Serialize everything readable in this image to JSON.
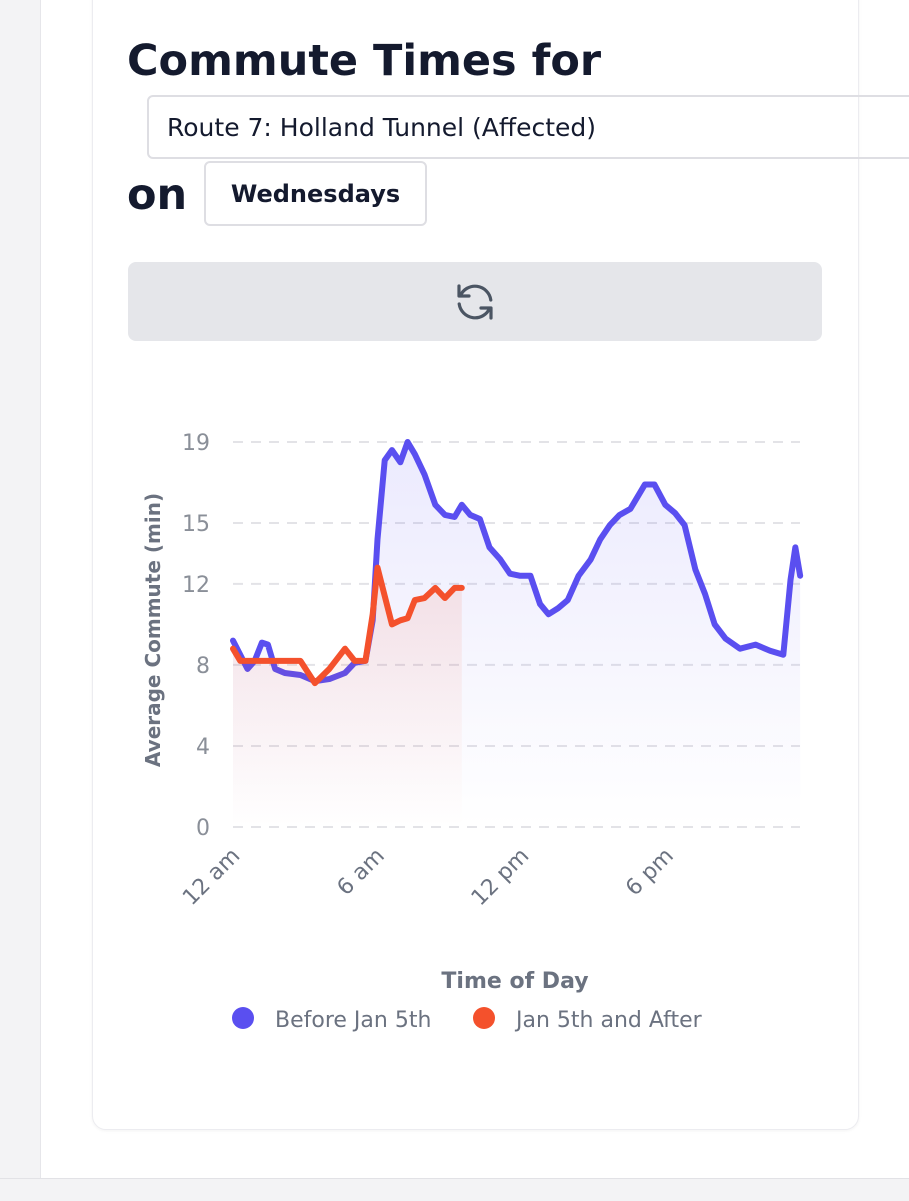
{
  "header": {
    "title": "Commute Times for",
    "route": "Route 7: Holland Tunnel (Affected)",
    "on": "on",
    "day": "Wednesdays"
  },
  "chart_data": {
    "type": "line",
    "xlabel": "Time of Day",
    "ylabel": "Average Commute (min)",
    "x": [
      0,
      0.3,
      0.6,
      0.9,
      1.2,
      1.45,
      1.75,
      2.15,
      2.8,
      3.4,
      4.0,
      4.65,
      5.05,
      5.5,
      5.8,
      6.0,
      6.3,
      6.6,
      6.95,
      7.25,
      7.55,
      7.95,
      8.4,
      8.8,
      9.2,
      9.5,
      9.85,
      10.25,
      10.65,
      11.1,
      11.5,
      11.9,
      12.35,
      12.75,
      13.1,
      13.5,
      13.9,
      14.35,
      14.85,
      15.25,
      15.65,
      16.05,
      16.5,
      17.1,
      17.5,
      17.95,
      18.35,
      18.75,
      19.2,
      19.6,
      20.0,
      20.45,
      21.05,
      21.7,
      22.3,
      22.85,
      23.15,
      23.35,
      23.55
    ],
    "series": [
      {
        "name": "Before Jan 5th",
        "color": "#5a4ff0",
        "values": [
          9.2,
          8.5,
          7.8,
          8.2,
          9.1,
          9.0,
          7.8,
          7.6,
          7.5,
          7.2,
          7.3,
          7.6,
          8.1,
          8.2,
          10.2,
          14.2,
          18.1,
          18.6,
          18.0,
          19.0,
          18.4,
          17.4,
          15.9,
          15.4,
          15.3,
          15.9,
          15.4,
          15.2,
          13.8,
          13.2,
          12.5,
          12.4,
          12.4,
          11.0,
          10.5,
          10.8,
          11.2,
          12.4,
          13.2,
          14.2,
          14.9,
          15.4,
          15.7,
          16.9,
          16.9,
          15.9,
          15.5,
          14.9,
          12.7,
          11.5,
          10.0,
          9.3,
          8.8,
          9.0,
          8.7,
          8.5,
          12.2,
          13.8,
          12.4
        ]
      },
      {
        "name": "Jan 5th and After",
        "color": "#f4512c",
        "values": [
          8.8,
          8.2,
          8.2,
          8.2,
          8.2,
          8.2,
          8.2,
          8.2,
          8.2,
          7.1,
          7.8,
          8.8,
          8.2,
          8.2,
          10.5,
          12.8,
          11.4,
          10.0,
          10.2,
          10.3,
          11.2,
          11.3,
          11.8,
          11.3,
          11.8,
          11.8,
          null,
          null,
          null,
          null,
          null,
          null,
          null,
          null,
          null,
          null,
          null,
          null,
          null,
          null,
          null,
          null,
          null,
          null,
          null,
          null,
          null,
          null,
          null,
          null,
          null,
          null,
          null,
          null,
          null,
          null,
          null,
          null,
          null
        ]
      }
    ],
    "xlim": [
      0,
      24
    ],
    "ylim": [
      0,
      19
    ],
    "xticks": [
      {
        "value": 0,
        "label": "12 am"
      },
      {
        "value": 6,
        "label": "6 am"
      },
      {
        "value": 12,
        "label": "12 pm"
      },
      {
        "value": 18,
        "label": "6 pm"
      }
    ],
    "yticks": [
      0,
      4,
      8,
      12,
      15,
      19
    ],
    "grid": true,
    "legend": "bottom"
  }
}
